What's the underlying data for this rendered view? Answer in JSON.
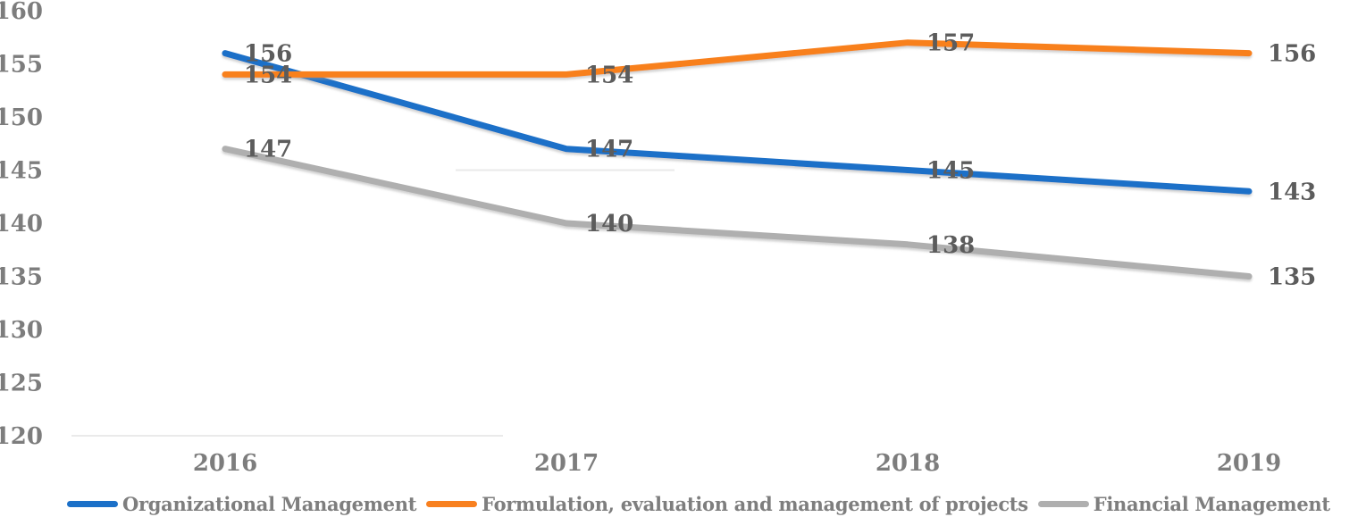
{
  "chart_data": {
    "type": "line",
    "title": "",
    "xlabel": "",
    "ylabel": "",
    "categories": [
      "2016",
      "2017",
      "2018",
      "2019"
    ],
    "series": [
      {
        "name": "Organizational Management",
        "values": [
          156,
          147,
          145,
          143
        ],
        "color": "#1B70C8"
      },
      {
        "name": "Formulation, evaluation and management of projects",
        "values": [
          154,
          154,
          157,
          156
        ],
        "color": "#F8801F"
      },
      {
        "name": "Financial Management",
        "values": [
          147,
          140,
          138,
          135
        ],
        "color": "#AFAFAF"
      }
    ],
    "y_axis": {
      "min": 120,
      "max": 160,
      "step": 5,
      "tick_labels": [
        "160",
        "155",
        "150",
        "145",
        "140",
        "135",
        "130",
        "125",
        "120"
      ]
    },
    "data_labels": true,
    "legend_position": "bottom",
    "grid": {
      "style": "partial-light-segments",
      "segments": [
        {
          "at_value": 120,
          "x_from": 80,
          "x_to": 563
        },
        {
          "at_value": 145,
          "x_from": 510,
          "x_to": 755
        }
      ]
    }
  },
  "style": {
    "axis_label_color": "#7d7d7d",
    "data_label_color": "#5c5c5c",
    "legend_text_color": "#7e7e7e",
    "gridline_color": "#eaeaea",
    "background": "#ffffff"
  },
  "layout_values": {
    "plot": {
      "x0": 252,
      "x_step": 382,
      "y_of_min": 488,
      "y_of_max": 12
    },
    "x_tick_y": 527,
    "y_tick_right_edge": 48,
    "line_width": 7
  }
}
